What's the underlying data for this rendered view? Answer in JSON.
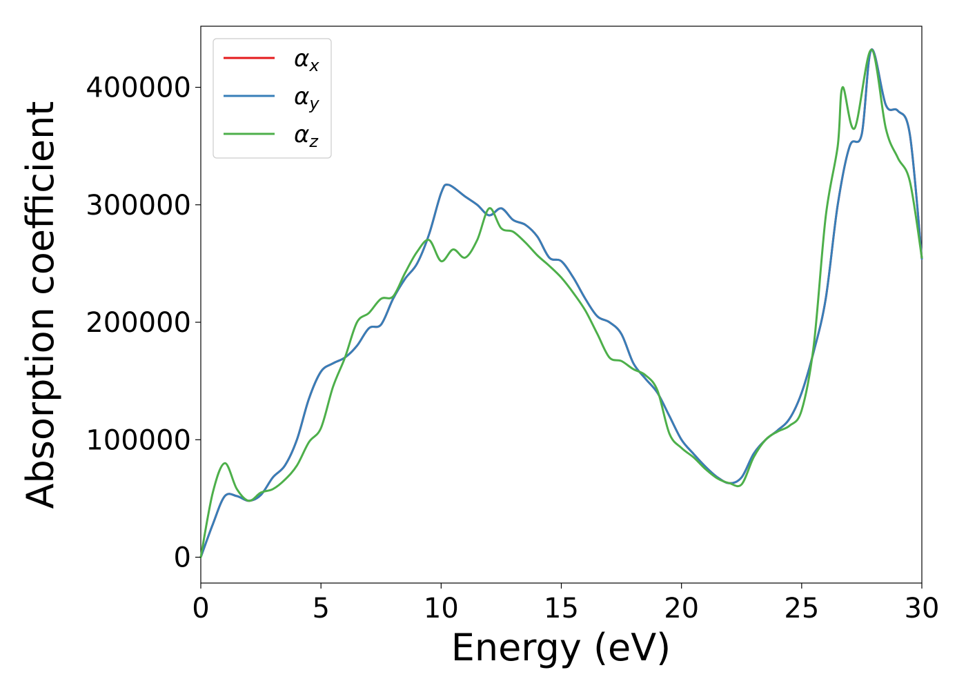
{
  "chart_data": {
    "type": "line",
    "xlabel": "Energy (eV)",
    "ylabel": "Absorption coefficient",
    "xlim": [
      0,
      30
    ],
    "ylim": [
      -22000,
      452000
    ],
    "xticks": [
      0,
      5,
      10,
      15,
      20,
      25,
      30
    ],
    "xtick_labels": [
      "0",
      "5",
      "10",
      "15",
      "20",
      "25",
      "30"
    ],
    "yticks": [
      0,
      100000,
      200000,
      300000,
      400000
    ],
    "ytick_labels": [
      "0",
      "100000",
      "200000",
      "300000",
      "400000"
    ],
    "grid": false,
    "legend_position": "top-left",
    "series": [
      {
        "name": "α",
        "subscript": "x",
        "color": "#e41a1c",
        "x": [
          0,
          0.5,
          1,
          1.5,
          2,
          2.5,
          3,
          3.5,
          4,
          4.5,
          5,
          5.5,
          6,
          6.5,
          7,
          7.5,
          8,
          8.5,
          9,
          9.5,
          10,
          10.3,
          11,
          11.5,
          12,
          12.5,
          13,
          13.5,
          14,
          14.5,
          15,
          15.5,
          16,
          16.5,
          17,
          17.5,
          18,
          18.5,
          19,
          19.5,
          20,
          20.5,
          21,
          21.5,
          22,
          22.5,
          23,
          23.5,
          24,
          24.5,
          25,
          25.5,
          26,
          26.5,
          27,
          27.5,
          27.9,
          28.5,
          29,
          29.5,
          30
        ],
        "y": [
          0,
          28000,
          52000,
          52000,
          48000,
          53000,
          68000,
          78000,
          100000,
          135000,
          158000,
          165000,
          170000,
          180000,
          195000,
          198000,
          220000,
          237000,
          250000,
          275000,
          310000,
          317000,
          307000,
          300000,
          291000,
          297000,
          287000,
          283000,
          273000,
          255000,
          252000,
          238000,
          220000,
          205000,
          200000,
          190000,
          165000,
          152000,
          140000,
          120000,
          100000,
          88000,
          77000,
          68000,
          63000,
          68000,
          88000,
          100000,
          108000,
          118000,
          140000,
          175000,
          220000,
          300000,
          350000,
          360000,
          432000,
          385000,
          380000,
          360000,
          254000
        ]
      },
      {
        "name": "α",
        "subscript": "y",
        "color": "#377eb8",
        "x": [
          0,
          0.5,
          1,
          1.5,
          2,
          2.5,
          3,
          3.5,
          4,
          4.5,
          5,
          5.5,
          6,
          6.5,
          7,
          7.5,
          8,
          8.5,
          9,
          9.5,
          10,
          10.3,
          11,
          11.5,
          12,
          12.5,
          13,
          13.5,
          14,
          14.5,
          15,
          15.5,
          16,
          16.5,
          17,
          17.5,
          18,
          18.5,
          19,
          19.5,
          20,
          20.5,
          21,
          21.5,
          22,
          22.5,
          23,
          23.5,
          24,
          24.5,
          25,
          25.5,
          26,
          26.5,
          27,
          27.5,
          27.9,
          28.5,
          29,
          29.5,
          30
        ],
        "y": [
          0,
          28000,
          52000,
          52000,
          48000,
          53000,
          68000,
          78000,
          100000,
          135000,
          158000,
          165000,
          170000,
          180000,
          195000,
          198000,
          220000,
          237000,
          250000,
          275000,
          310000,
          317000,
          307000,
          300000,
          291000,
          297000,
          287000,
          283000,
          273000,
          255000,
          252000,
          238000,
          220000,
          205000,
          200000,
          190000,
          165000,
          152000,
          140000,
          120000,
          100000,
          88000,
          77000,
          68000,
          63000,
          68000,
          88000,
          100000,
          108000,
          118000,
          140000,
          175000,
          220000,
          300000,
          350000,
          360000,
          432000,
          385000,
          380000,
          360000,
          254000
        ]
      },
      {
        "name": "α",
        "subscript": "z",
        "color": "#4daf4a",
        "x": [
          0,
          0.5,
          1,
          1.5,
          2,
          2.5,
          3,
          3.5,
          4,
          4.5,
          5,
          5.5,
          6,
          6.5,
          7,
          7.5,
          8,
          8.5,
          9,
          9.5,
          10,
          10.5,
          11,
          11.5,
          12,
          12.5,
          13,
          13.5,
          14,
          14.5,
          15,
          15.5,
          16,
          16.5,
          17,
          17.5,
          18,
          18.5,
          19,
          19.5,
          20,
          20.5,
          21,
          21.5,
          22,
          22.5,
          23,
          23.5,
          24,
          24.5,
          25,
          25.5,
          26,
          26.5,
          26.7,
          27.2,
          27.9,
          28.5,
          29,
          29.5,
          30
        ],
        "y": [
          0,
          55000,
          80000,
          58000,
          48000,
          55000,
          58000,
          66000,
          78000,
          98000,
          110000,
          145000,
          170000,
          200000,
          208000,
          220000,
          222000,
          242000,
          260000,
          270000,
          252000,
          262000,
          255000,
          270000,
          297000,
          280000,
          277000,
          268000,
          257000,
          248000,
          238000,
          225000,
          210000,
          190000,
          170000,
          167000,
          160000,
          155000,
          142000,
          105000,
          93000,
          85000,
          75000,
          67000,
          63000,
          62000,
          85000,
          100000,
          107000,
          112000,
          125000,
          180000,
          290000,
          350000,
          400000,
          365000,
          432000,
          365000,
          340000,
          320000,
          255000
        ]
      }
    ]
  }
}
